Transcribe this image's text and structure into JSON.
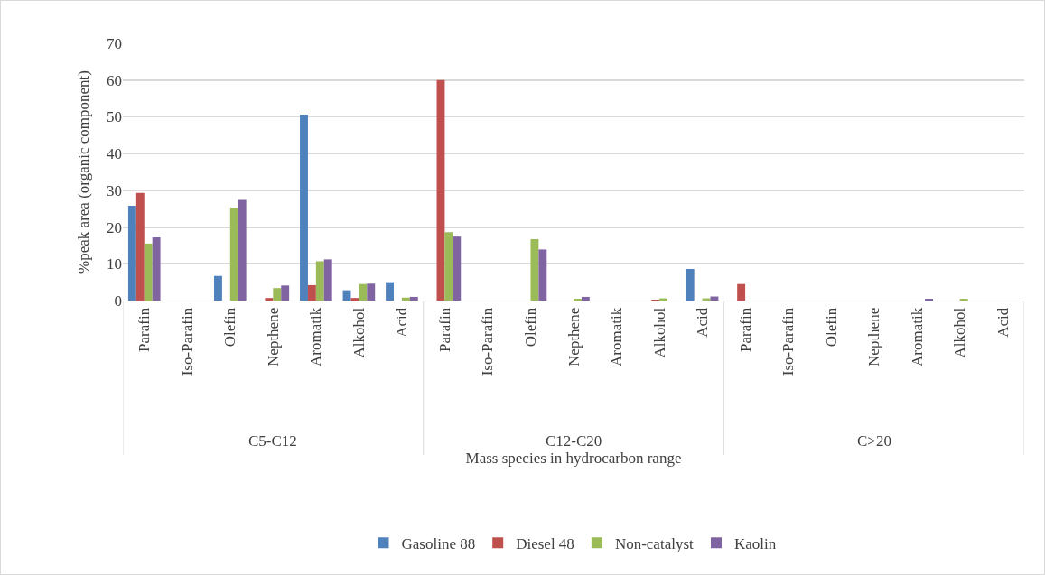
{
  "chart_data": {
    "type": "bar",
    "xlabel": "Mass species in hydrocarbon range",
    "ylabel": "%peak area (organic component)",
    "categories": [
      "Parafin",
      "Iso-Parafin",
      "Olefin",
      "Nepthene",
      "Aromatik",
      "Alkohol",
      "Acid",
      "Parafin",
      "Iso-Parafin",
      "Olefin",
      "Nepthene",
      "Aromatik",
      "Alkohol",
      "Acid",
      "Parafin",
      "Iso-Parafin",
      "Olefin",
      "Nepthene",
      "Aromatik",
      "Alkohol",
      "Acid"
    ],
    "annotations": [
      "C5-C12",
      "C12-C20",
      "C>20"
    ],
    "series": [
      {
        "name": "Gasoline 88",
        "color": "#4f81bd",
        "values": [
          25.8,
          0,
          6.7,
          0,
          50.6,
          2.8,
          5.0,
          0,
          0,
          0,
          0,
          0,
          0,
          8.6,
          0,
          0,
          0,
          0,
          0,
          0,
          0
        ]
      },
      {
        "name": "Diesel 48",
        "color": "#c0504d",
        "values": [
          29.3,
          0,
          0,
          0.7,
          4.2,
          0.7,
          0,
          60,
          0,
          0,
          0,
          0,
          0.1,
          0,
          4.5,
          0,
          0,
          0,
          0,
          0,
          0
        ]
      },
      {
        "name": "Non-catalyst",
        "color": "#9bbb59",
        "values": [
          15.5,
          0,
          25.3,
          3.4,
          10.7,
          4.5,
          0.8,
          18.6,
          0,
          16.7,
          0.3,
          0,
          0.6,
          0.6,
          0,
          0,
          0,
          0,
          0,
          0.4,
          0
        ]
      },
      {
        "name": "Kaolin",
        "color": "#8064a2",
        "values": [
          17.2,
          0,
          27.4,
          4.1,
          11.2,
          4.6,
          1.0,
          17.4,
          0,
          13.9,
          1.0,
          0,
          0,
          1.1,
          0,
          0,
          0,
          0,
          0.3,
          0,
          0
        ]
      }
    ],
    "ylim": [
      0,
      70
    ],
    "yticks": [
      0,
      10,
      20,
      30,
      40,
      50,
      60,
      70
    ],
    "grid": "y",
    "legend": "bottom"
  }
}
